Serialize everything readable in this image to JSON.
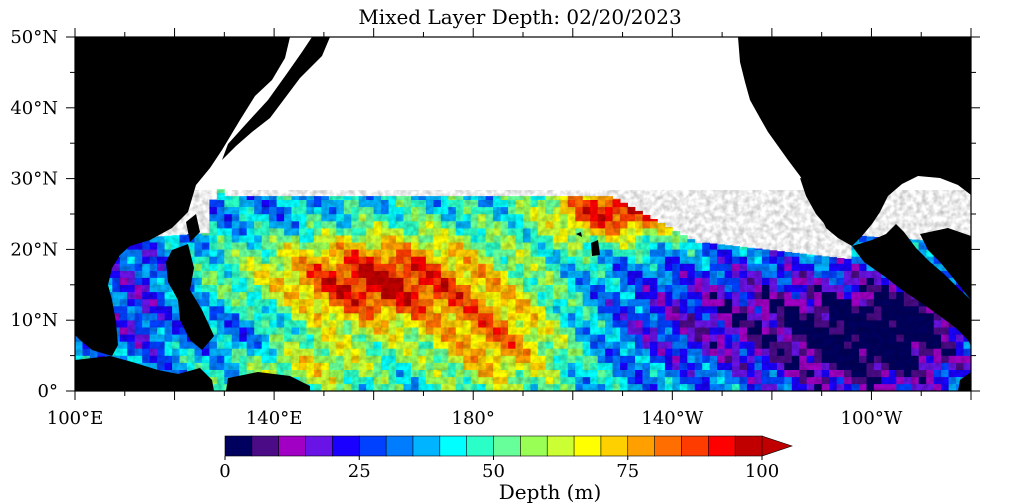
{
  "chart_data": {
    "type": "heatmap",
    "title": "Mixed Layer Depth: 02/20/2023",
    "x_tick_labels": [
      "100°E",
      "140°E",
      "180°",
      "140°W",
      "100°W"
    ],
    "y_tick_labels": [
      "0°",
      "10°N",
      "20°N",
      "30°N",
      "40°N",
      "50°N"
    ],
    "colorbar": {
      "label": "Depth (m)",
      "tick_labels": [
        "0",
        "25",
        "50",
        "75",
        "100"
      ],
      "min": 0,
      "max": 100,
      "extend": "max",
      "colors": [
        "#00005f",
        "#4b0b86",
        "#a100c4",
        "#6a13e6",
        "#1a00ff",
        "#0040ff",
        "#007cff",
        "#00b4ff",
        "#00ffff",
        "#2affc8",
        "#66ff99",
        "#99ff55",
        "#ccff33",
        "#ffff00",
        "#ffd000",
        "#ffa000",
        "#ff6e00",
        "#ff3c00",
        "#ff0000",
        "#c00000"
      ]
    }
  }
}
